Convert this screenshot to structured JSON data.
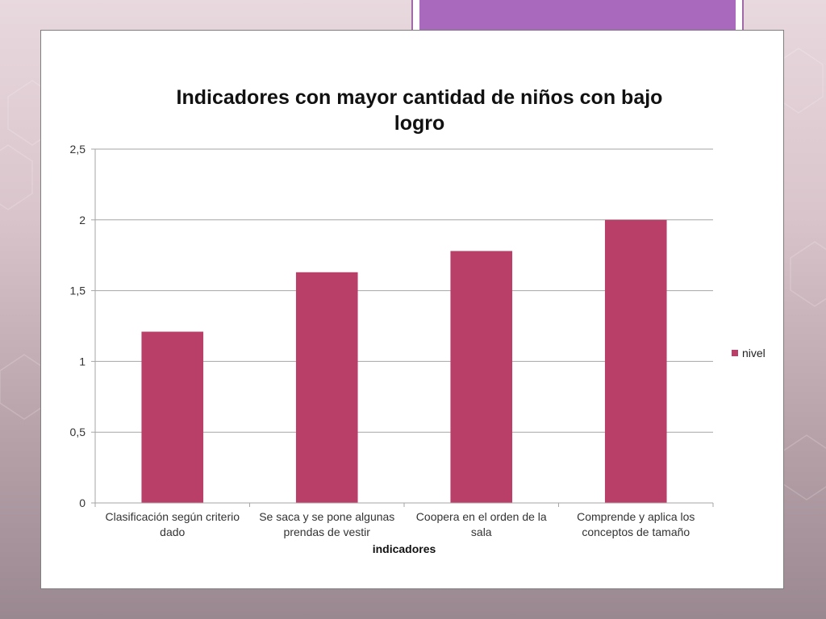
{
  "colors": {
    "bar": "#b93e68",
    "accent": "#a96abd",
    "grid": "#a6a6a6"
  },
  "chart_data": {
    "type": "bar",
    "title": "Indicadores con mayor cantidad de niños con bajo logro",
    "xlabel": "indicadores",
    "ylabel": "",
    "categories": [
      [
        "Clasificación según criterio",
        "dado"
      ],
      [
        "Se saca y se pone algunas",
        "prendas de vestir"
      ],
      [
        "Coopera en el orden de la",
        "sala"
      ],
      [
        "Comprende y aplica los",
        "conceptos de tamaño"
      ]
    ],
    "series": [
      {
        "name": "nivel",
        "values": [
          1.21,
          1.63,
          1.78,
          2.0
        ]
      }
    ],
    "y_ticks": [
      "0",
      "0,5",
      "1",
      "1,5",
      "2",
      "2,5"
    ],
    "ylim": [
      0,
      2.5
    ],
    "grid": true,
    "legend_position": "right"
  }
}
